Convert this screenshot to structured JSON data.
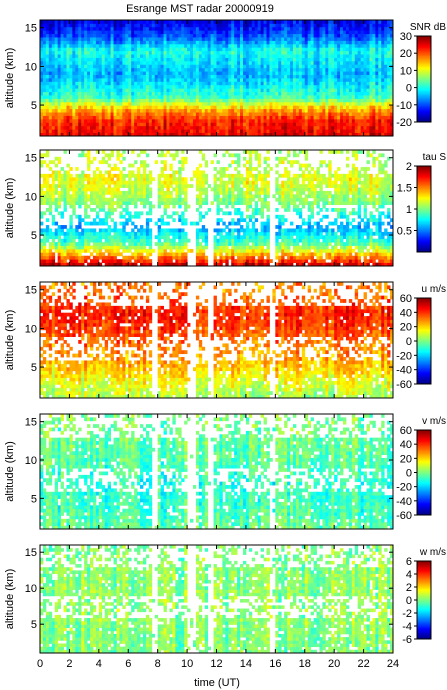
{
  "figure": {
    "title": "Esrange MST radar 20000919",
    "xlabel": "time (UT)",
    "x_ticks": [
      "0",
      "2",
      "4",
      "6",
      "8",
      "10",
      "12",
      "14",
      "16",
      "18",
      "20",
      "22",
      "24"
    ]
  },
  "chart_data": [
    {
      "type": "heatmap",
      "quantity": "SNR",
      "colorbar_label": "SNR dB",
      "ylabel": "altitude (km)",
      "xlim": [
        0,
        24
      ],
      "ylim": [
        1,
        16
      ],
      "y_ticks": [
        "5",
        "10",
        "15"
      ],
      "clim": [
        -20,
        30
      ],
      "colorbar_ticks": [
        "30",
        "20",
        "10",
        "0",
        "-10",
        "-20"
      ],
      "colorbar_tick_values": [
        30,
        20,
        10,
        0,
        -10,
        -20
      ],
      "profile": [
        {
          "alt": 1,
          "value": 25
        },
        {
          "alt": 3,
          "value": 22
        },
        {
          "alt": 4.5,
          "value": 15
        },
        {
          "alt": 6,
          "value": 2
        },
        {
          "alt": 9,
          "value": -5
        },
        {
          "alt": 12,
          "value": 0
        },
        {
          "alt": 14,
          "value": -10
        },
        {
          "alt": 16,
          "value": -15
        }
      ],
      "coverage": "full",
      "grid": false
    },
    {
      "type": "heatmap",
      "quantity": "tau",
      "colorbar_label": "tau S",
      "ylabel": "altitude (km)",
      "xlim": [
        0,
        24
      ],
      "ylim": [
        1,
        16
      ],
      "y_ticks": [
        "5",
        "10",
        "15"
      ],
      "clim": [
        0,
        2
      ],
      "colorbar_ticks": [
        "2",
        "1.5",
        "1",
        "0.5"
      ],
      "colorbar_tick_values": [
        2,
        1.5,
        1,
        0.5
      ],
      "profile": [
        {
          "alt": 1,
          "value": 1.9
        },
        {
          "alt": 2.5,
          "value": 1.4
        },
        {
          "alt": 4,
          "value": 0.9
        },
        {
          "alt": 6,
          "value": 0.6
        },
        {
          "alt": 9,
          "value": 1.0
        },
        {
          "alt": 12,
          "value": 1.2
        },
        {
          "alt": 15,
          "value": 1.1
        }
      ],
      "coverage": "gappy",
      "grid": false
    },
    {
      "type": "heatmap",
      "quantity": "u",
      "colorbar_label": "u m/s",
      "ylabel": "altitude (km)",
      "xlim": [
        0,
        24
      ],
      "ylim": [
        1,
        16
      ],
      "y_ticks": [
        "5",
        "10",
        "15"
      ],
      "clim": [
        -60,
        60
      ],
      "colorbar_ticks": [
        "60",
        "40",
        "20",
        "0",
        "-20",
        "-40",
        "-60"
      ],
      "colorbar_tick_values": [
        60,
        40,
        20,
        0,
        -20,
        -40,
        -60
      ],
      "profile": [
        {
          "alt": 1,
          "value": 5
        },
        {
          "alt": 3,
          "value": 12
        },
        {
          "alt": 5,
          "value": 22
        },
        {
          "alt": 7,
          "value": 28
        },
        {
          "alt": 10,
          "value": 38
        },
        {
          "alt": 12,
          "value": 42
        },
        {
          "alt": 15,
          "value": 30
        }
      ],
      "coverage": "gappy",
      "grid": false
    },
    {
      "type": "heatmap",
      "quantity": "v",
      "colorbar_label": "v m/s",
      "ylabel": "altitude (km)",
      "xlim": [
        0,
        24
      ],
      "ylim": [
        1,
        16
      ],
      "y_ticks": [
        "5",
        "10",
        "15"
      ],
      "clim": [
        -60,
        60
      ],
      "colorbar_ticks": [
        "60",
        "40",
        "20",
        "0",
        "-20",
        "-40",
        "-60"
      ],
      "colorbar_tick_values": [
        60,
        40,
        20,
        0,
        -20,
        -40,
        -60
      ],
      "profile": [
        {
          "alt": 1,
          "value": -3
        },
        {
          "alt": 4,
          "value": -8
        },
        {
          "alt": 7,
          "value": -10
        },
        {
          "alt": 10,
          "value": -5
        },
        {
          "alt": 13,
          "value": -3
        },
        {
          "alt": 16,
          "value": 0
        }
      ],
      "coverage": "gappy",
      "grid": false
    },
    {
      "type": "heatmap",
      "quantity": "w",
      "colorbar_label": "w m/s",
      "ylabel": "altitude (km)",
      "xlim": [
        0,
        24
      ],
      "ylim": [
        1,
        16
      ],
      "y_ticks": [
        "5",
        "10",
        "15"
      ],
      "clim": [
        -6,
        6
      ],
      "colorbar_ticks": [
        "6",
        "4",
        "2",
        "0",
        "-2",
        "-4",
        "-6"
      ],
      "colorbar_tick_values": [
        6,
        4,
        2,
        0,
        -2,
        -4,
        -6
      ],
      "profile": [
        {
          "alt": 1,
          "value": 0
        },
        {
          "alt": 8,
          "value": 0.2
        },
        {
          "alt": 16,
          "value": 0
        }
      ],
      "coverage": "gappy",
      "grid": false
    }
  ]
}
